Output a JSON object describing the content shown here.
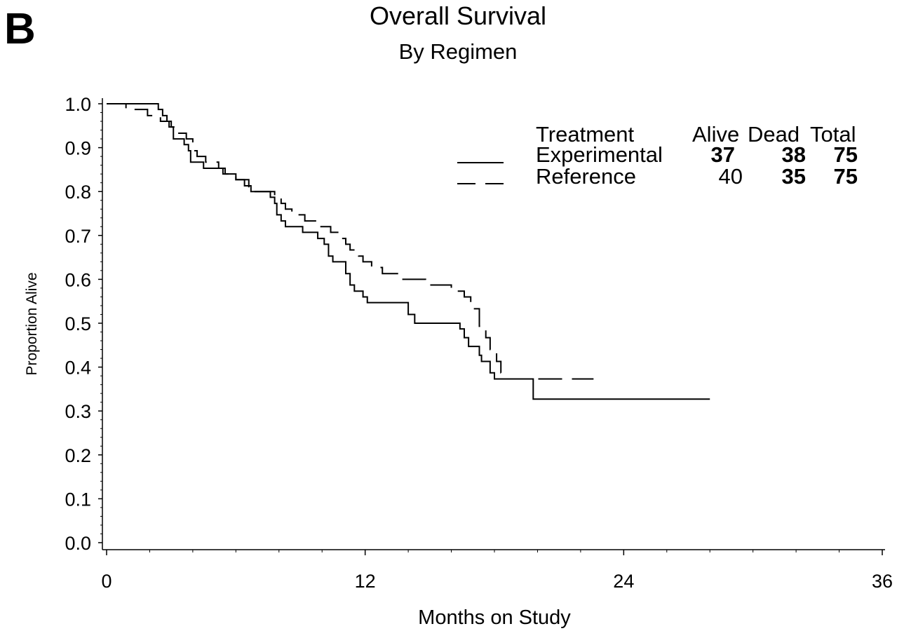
{
  "panel_letter": "B",
  "chart_data": {
    "type": "line",
    "title": "Overall Survival",
    "subtitle": "By Regimen",
    "xlabel": "Months on Study",
    "ylabel": "Proportion Alive",
    "xlim": [
      0,
      36
    ],
    "ylim": [
      0,
      1.0
    ],
    "x_ticks": [
      "0",
      "12",
      "24",
      "36"
    ],
    "y_ticks": [
      "0.0",
      "0.1",
      "0.2",
      "0.3",
      "0.4",
      "0.5",
      "0.6",
      "0.7",
      "0.8",
      "0.9",
      "1.0"
    ],
    "legend": {
      "placement": "top-right",
      "header": {
        "treatment": "Treatment",
        "alive": "Alive",
        "dead": "Dead",
        "total": "Total"
      }
    },
    "series": [
      {
        "name": "Experimental",
        "style": "solid",
        "alive": "37",
        "dead": "38",
        "total": "75",
        "steps": [
          [
            0,
            1.0
          ],
          [
            2.4,
            0.987
          ],
          [
            2.6,
            0.973
          ],
          [
            2.8,
            0.96
          ],
          [
            3.0,
            0.947
          ],
          [
            3.1,
            0.92
          ],
          [
            3.6,
            0.907
          ],
          [
            3.8,
            0.893
          ],
          [
            3.9,
            0.867
          ],
          [
            4.5,
            0.853
          ],
          [
            5.4,
            0.84
          ],
          [
            6.0,
            0.827
          ],
          [
            6.6,
            0.813
          ],
          [
            6.7,
            0.8
          ],
          [
            7.6,
            0.787
          ],
          [
            7.8,
            0.773
          ],
          [
            7.9,
            0.747
          ],
          [
            8.1,
            0.733
          ],
          [
            8.3,
            0.72
          ],
          [
            9.1,
            0.707
          ],
          [
            9.8,
            0.693
          ],
          [
            10.1,
            0.68
          ],
          [
            10.3,
            0.653
          ],
          [
            10.5,
            0.64
          ],
          [
            11.1,
            0.613
          ],
          [
            11.3,
            0.587
          ],
          [
            11.5,
            0.573
          ],
          [
            11.9,
            0.56
          ],
          [
            12.1,
            0.547
          ],
          [
            14.0,
            0.52
          ],
          [
            14.3,
            0.5
          ],
          [
            16.4,
            0.487
          ],
          [
            16.6,
            0.467
          ],
          [
            16.8,
            0.447
          ],
          [
            17.3,
            0.427
          ],
          [
            17.4,
            0.413
          ],
          [
            17.8,
            0.387
          ],
          [
            18.0,
            0.373
          ],
          [
            19.8,
            0.327
          ],
          [
            28.0,
            0.327
          ]
        ]
      },
      {
        "name": "Reference",
        "style": "dashed",
        "alive": "40",
        "dead": "35",
        "total": "75",
        "steps": [
          [
            0,
            1.0
          ],
          [
            0.9,
            0.987
          ],
          [
            1.9,
            0.973
          ],
          [
            2.5,
            0.96
          ],
          [
            2.9,
            0.947
          ],
          [
            3.2,
            0.933
          ],
          [
            3.7,
            0.92
          ],
          [
            4.0,
            0.893
          ],
          [
            4.2,
            0.88
          ],
          [
            4.6,
            0.867
          ],
          [
            5.2,
            0.853
          ],
          [
            5.5,
            0.84
          ],
          [
            6.0,
            0.827
          ],
          [
            6.4,
            0.813
          ],
          [
            6.6,
            0.8
          ],
          [
            7.8,
            0.787
          ],
          [
            8.1,
            0.773
          ],
          [
            8.3,
            0.76
          ],
          [
            8.6,
            0.747
          ],
          [
            9.2,
            0.733
          ],
          [
            9.8,
            0.72
          ],
          [
            10.4,
            0.707
          ],
          [
            10.9,
            0.693
          ],
          [
            11.1,
            0.68
          ],
          [
            11.3,
            0.667
          ],
          [
            11.7,
            0.653
          ],
          [
            11.9,
            0.64
          ],
          [
            12.3,
            0.627
          ],
          [
            12.8,
            0.613
          ],
          [
            13.6,
            0.6
          ],
          [
            14.8,
            0.587
          ],
          [
            16.0,
            0.573
          ],
          [
            16.6,
            0.56
          ],
          [
            16.9,
            0.533
          ],
          [
            17.3,
            0.493
          ],
          [
            17.6,
            0.467
          ],
          [
            17.8,
            0.44
          ],
          [
            18.1,
            0.413
          ],
          [
            18.3,
            0.387
          ],
          [
            18.5,
            0.373
          ],
          [
            22.6,
            0.373
          ]
        ]
      }
    ],
    "grid": false
  }
}
